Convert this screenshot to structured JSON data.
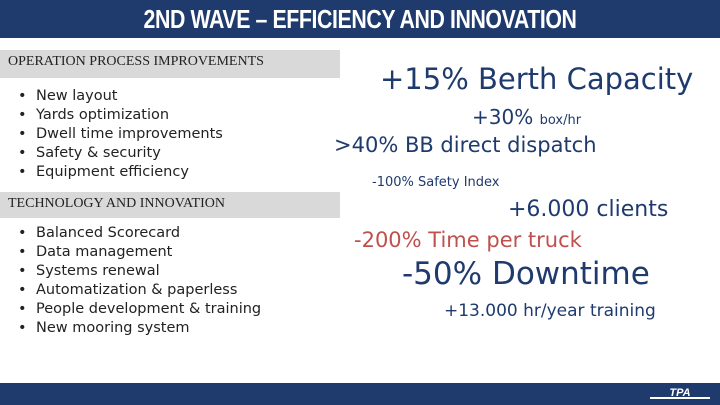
{
  "title": "2ND WAVE – EFFICIENCY AND INNOVATION",
  "sections": [
    {
      "header": "OPERATION PROCESS IMPROVEMENTS",
      "items": [
        "New layout",
        "Yards optimization",
        "Dwell time improvements",
        "Safety & security",
        "Equipment efficiency"
      ]
    },
    {
      "header": "TECHNOLOGY AND INNOVATION",
      "items": [
        "Balanced Scorecard",
        "Data management",
        "Systems renewal",
        "Automatization & paperless",
        "People development & training",
        "New mooring system"
      ]
    }
  ],
  "stats": {
    "berth": "+15% Berth Capacity",
    "box_value": "+30%",
    "box_unit": "box/hr",
    "bb_dispatch": ">40% BB direct dispatch",
    "safety": "-100% Safety Index",
    "clients": "+6.000 clients",
    "truck": "-200% Time per truck",
    "downtime": "-50% Downtime",
    "training": "+13.000 hr/year training"
  },
  "logo": "TPA",
  "colors": {
    "primary": "#1f3a6d",
    "accent_red": "#c0504d",
    "section_bg": "#d9d9d9"
  }
}
